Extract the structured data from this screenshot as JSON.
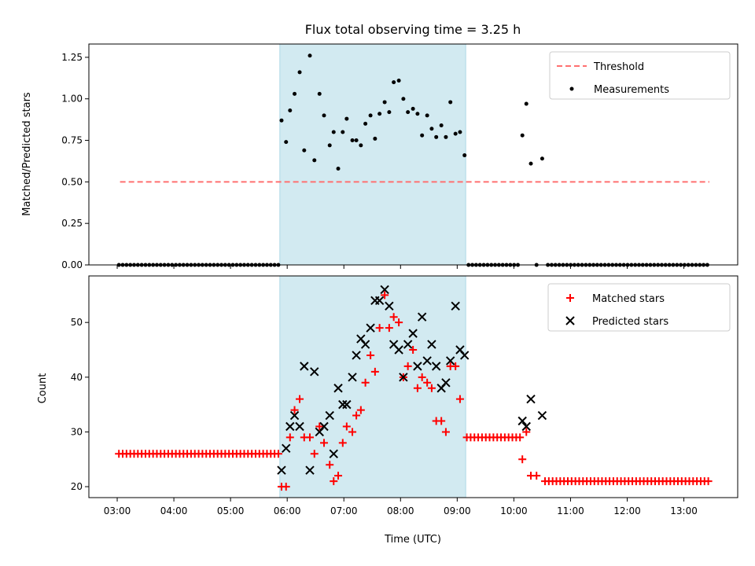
{
  "chart_data": {
    "title": "Flux total observing time = 3.25 h",
    "xlabel": "Time (UTC)",
    "x_unit": "hours UTC",
    "xlim": [
      2.5,
      13.95
    ],
    "xticks": [
      {
        "value": 3,
        "label": "03:00"
      },
      {
        "value": 4,
        "label": "04:00"
      },
      {
        "value": 5,
        "label": "05:00"
      },
      {
        "value": 6,
        "label": "06:00"
      },
      {
        "value": 7,
        "label": "07:00"
      },
      {
        "value": 8,
        "label": "08:00"
      },
      {
        "value": 9,
        "label": "09:00"
      },
      {
        "value": 10,
        "label": "10:00"
      },
      {
        "value": 11,
        "label": "11:00"
      },
      {
        "value": 12,
        "label": "12:00"
      },
      {
        "value": 13,
        "label": "13:00"
      }
    ],
    "shaded_span": {
      "x0": 5.87,
      "x1": 9.15,
      "color": "#add8e6"
    },
    "panels": [
      {
        "type": "scatter",
        "ylabel": "Matched/Predicted stars",
        "ylim": [
          0,
          1.33
        ],
        "yticks": [
          0,
          0.25,
          0.5,
          0.75,
          1.0,
          1.25
        ],
        "ytick_labels": [
          "0.00",
          "0.25",
          "0.50",
          "0.75",
          "1.00",
          "1.25"
        ],
        "legend": {
          "position": "upper right",
          "entries": [
            "Threshold",
            "Measurements"
          ]
        },
        "threshold": {
          "name": "Threshold",
          "y": 0.5,
          "x0": 3.05,
          "x1": 13.45,
          "color": "#ff7070",
          "style": "dashed"
        },
        "measurements": {
          "name": "Measurements",
          "color": "#000000",
          "zeros_a": {
            "start": 3.03,
            "step": 0.067,
            "count": 43
          },
          "zeros_b": {
            "start": 9.2,
            "step": 0.067,
            "count": 14
          },
          "zeros_c": {
            "start": 10.6,
            "step": 0.067,
            "count": 43
          },
          "points": [
            {
              "x": 10.4,
              "y": 0
            }
          ],
          "series_points": [
            [
              5.9,
              0.87
            ],
            [
              5.98,
              0.74
            ],
            [
              6.05,
              0.93
            ],
            [
              6.13,
              1.03
            ],
            [
              6.22,
              1.16
            ],
            [
              6.3,
              0.69
            ],
            [
              6.4,
              1.26
            ],
            [
              6.48,
              0.63
            ],
            [
              6.57,
              1.03
            ],
            [
              6.65,
              0.9
            ],
            [
              6.75,
              0.72
            ],
            [
              6.82,
              0.8
            ],
            [
              6.9,
              0.58
            ],
            [
              6.98,
              0.8
            ],
            [
              7.05,
              0.88
            ],
            [
              7.15,
              0.75
            ],
            [
              7.22,
              0.75
            ],
            [
              7.3,
              0.72
            ],
            [
              7.38,
              0.85
            ],
            [
              7.47,
              0.9
            ],
            [
              7.55,
              0.76
            ],
            [
              7.63,
              0.91
            ],
            [
              7.72,
              0.98
            ],
            [
              7.8,
              0.92
            ],
            [
              7.88,
              1.1
            ],
            [
              7.97,
              1.11
            ],
            [
              8.05,
              1.0
            ],
            [
              8.13,
              0.92
            ],
            [
              8.22,
              0.94
            ],
            [
              8.3,
              0.91
            ],
            [
              8.38,
              0.78
            ],
            [
              8.47,
              0.9
            ],
            [
              8.55,
              0.82
            ],
            [
              8.63,
              0.77
            ],
            [
              8.72,
              0.84
            ],
            [
              8.8,
              0.77
            ],
            [
              8.88,
              0.98
            ],
            [
              8.97,
              0.79
            ],
            [
              9.05,
              0.8
            ],
            [
              9.13,
              0.66
            ],
            [
              10.15,
              0.78
            ],
            [
              10.22,
              0.97
            ],
            [
              10.3,
              0.61
            ],
            [
              10.5,
              0.64
            ]
          ]
        }
      },
      {
        "type": "scatter",
        "ylabel": "Count",
        "ylim": [
          18,
          58.5
        ],
        "yticks": [
          20,
          30,
          40,
          50
        ],
        "ytick_labels": [
          "20",
          "30",
          "40",
          "50"
        ],
        "legend": {
          "position": "upper right",
          "entries": [
            "Matched stars",
            "Predicted stars"
          ]
        },
        "matched": {
          "name": "Matched stars",
          "color": "#ff0000",
          "flat_a": {
            "start": 3.03,
            "step": 0.067,
            "count": 43,
            "y": 26
          },
          "flat_b": {
            "start": 9.17,
            "step": 0.067,
            "count": 15,
            "y": 29
          },
          "flat_c": {
            "start": 10.55,
            "step": 0.067,
            "count": 44,
            "y": 21
          },
          "points": [
            [
              5.9,
              20
            ],
            [
              5.98,
              20
            ],
            [
              6.05,
              29
            ],
            [
              6.13,
              34
            ],
            [
              6.22,
              36
            ],
            [
              6.3,
              29
            ],
            [
              6.4,
              29
            ],
            [
              6.48,
              26
            ],
            [
              6.57,
              31
            ],
            [
              6.65,
              28
            ],
            [
              6.75,
              24
            ],
            [
              6.82,
              21
            ],
            [
              6.9,
              22
            ],
            [
              6.98,
              28
            ],
            [
              7.05,
              31
            ],
            [
              7.15,
              30
            ],
            [
              7.22,
              33
            ],
            [
              7.3,
              34
            ],
            [
              7.38,
              39
            ],
            [
              7.47,
              44
            ],
            [
              7.55,
              41
            ],
            [
              7.63,
              49
            ],
            [
              7.72,
              55
            ],
            [
              7.8,
              49
            ],
            [
              7.88,
              51
            ],
            [
              7.97,
              50
            ],
            [
              8.05,
              40
            ],
            [
              8.13,
              42
            ],
            [
              8.22,
              45
            ],
            [
              8.3,
              38
            ],
            [
              8.38,
              40
            ],
            [
              8.47,
              39
            ],
            [
              8.55,
              38
            ],
            [
              8.63,
              32
            ],
            [
              8.72,
              32
            ],
            [
              8.8,
              30
            ],
            [
              8.88,
              42
            ],
            [
              8.97,
              42
            ],
            [
              9.05,
              36
            ],
            [
              10.15,
              25
            ],
            [
              10.22,
              30
            ],
            [
              10.3,
              22
            ],
            [
              10.4,
              22
            ]
          ]
        },
        "predicted": {
          "name": "Predicted stars",
          "color": "#000000",
          "points": [
            [
              5.9,
              23
            ],
            [
              5.98,
              27
            ],
            [
              6.05,
              31
            ],
            [
              6.13,
              33
            ],
            [
              6.22,
              31
            ],
            [
              6.3,
              42
            ],
            [
              6.4,
              23
            ],
            [
              6.48,
              41
            ],
            [
              6.57,
              30
            ],
            [
              6.65,
              31
            ],
            [
              6.75,
              33
            ],
            [
              6.82,
              26
            ],
            [
              6.9,
              38
            ],
            [
              6.98,
              35
            ],
            [
              7.05,
              35
            ],
            [
              7.15,
              40
            ],
            [
              7.22,
              44
            ],
            [
              7.3,
              47
            ],
            [
              7.38,
              46
            ],
            [
              7.47,
              49
            ],
            [
              7.55,
              54
            ],
            [
              7.63,
              54
            ],
            [
              7.72,
              56
            ],
            [
              7.8,
              53
            ],
            [
              7.88,
              46
            ],
            [
              7.97,
              45
            ],
            [
              8.05,
              40
            ],
            [
              8.13,
              46
            ],
            [
              8.22,
              48
            ],
            [
              8.3,
              42
            ],
            [
              8.38,
              51
            ],
            [
              8.47,
              43
            ],
            [
              8.55,
              46
            ],
            [
              8.63,
              42
            ],
            [
              8.72,
              38
            ],
            [
              8.8,
              39
            ],
            [
              8.88,
              43
            ],
            [
              8.97,
              53
            ],
            [
              9.05,
              45
            ],
            [
              9.13,
              44
            ],
            [
              10.15,
              32
            ],
            [
              10.22,
              31
            ],
            [
              10.3,
              36
            ],
            [
              10.5,
              33
            ]
          ]
        }
      }
    ]
  }
}
